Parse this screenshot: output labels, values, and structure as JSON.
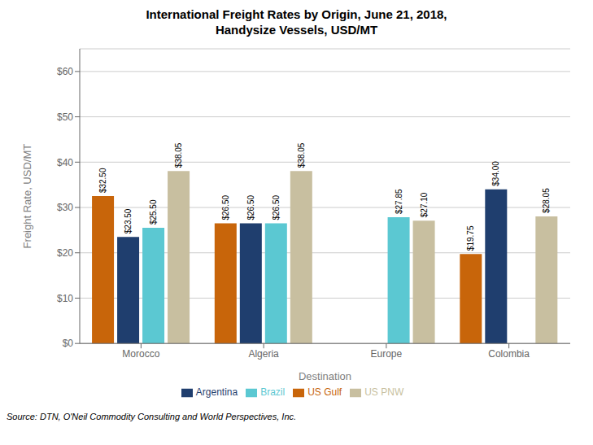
{
  "chart_data": {
    "type": "bar",
    "title": "International Freight Rates by Origin, June 21, 2018,\nHandysize Vessels, USD/MT",
    "xlabel": "Destination",
    "ylabel": "Freight Rate, USD/MT",
    "annotations": [
      "Source: DTN, O'Neil Commodity Consulting and World Perspectives, Inc."
    ],
    "categories": [
      "Morocco",
      "Algeria",
      "Europe",
      "Colombia"
    ],
    "series": [
      {
        "name": "US Gulf",
        "color": "#C8650A",
        "values": [
          32.5,
          26.5,
          null,
          19.75
        ],
        "value_labels": [
          "$32.50",
          "$26.50",
          null,
          "$19.75"
        ]
      },
      {
        "name": "Argentina",
        "color": "#1F3E6E",
        "values": [
          23.5,
          26.5,
          null,
          34.0
        ],
        "value_labels": [
          "$23.50",
          "$26.50",
          null,
          "$34.00"
        ]
      },
      {
        "name": "Brazil",
        "color": "#5BC8D2",
        "values": [
          25.5,
          26.5,
          27.85,
          null
        ],
        "value_labels": [
          "$25.50",
          "$26.50",
          "$27.85",
          null
        ]
      },
      {
        "name": "US PNW",
        "color": "#C8BFA0",
        "values": [
          38.05,
          38.05,
          27.1,
          28.05
        ],
        "value_labels": [
          "$38.05",
          "$38.05",
          "$27.10",
          "$28.05"
        ]
      }
    ],
    "ylim": [
      0,
      65
    ],
    "yticks": [
      {
        "value": 0,
        "label": "$0"
      },
      {
        "value": 10,
        "label": "$10"
      },
      {
        "value": 20,
        "label": "$20"
      },
      {
        "value": 30,
        "label": "$30"
      },
      {
        "value": 40,
        "label": "$40"
      },
      {
        "value": 50,
        "label": "$50"
      },
      {
        "value": 60,
        "label": "$60"
      }
    ],
    "grid": true,
    "legend": "bottom",
    "data_labels": true
  }
}
